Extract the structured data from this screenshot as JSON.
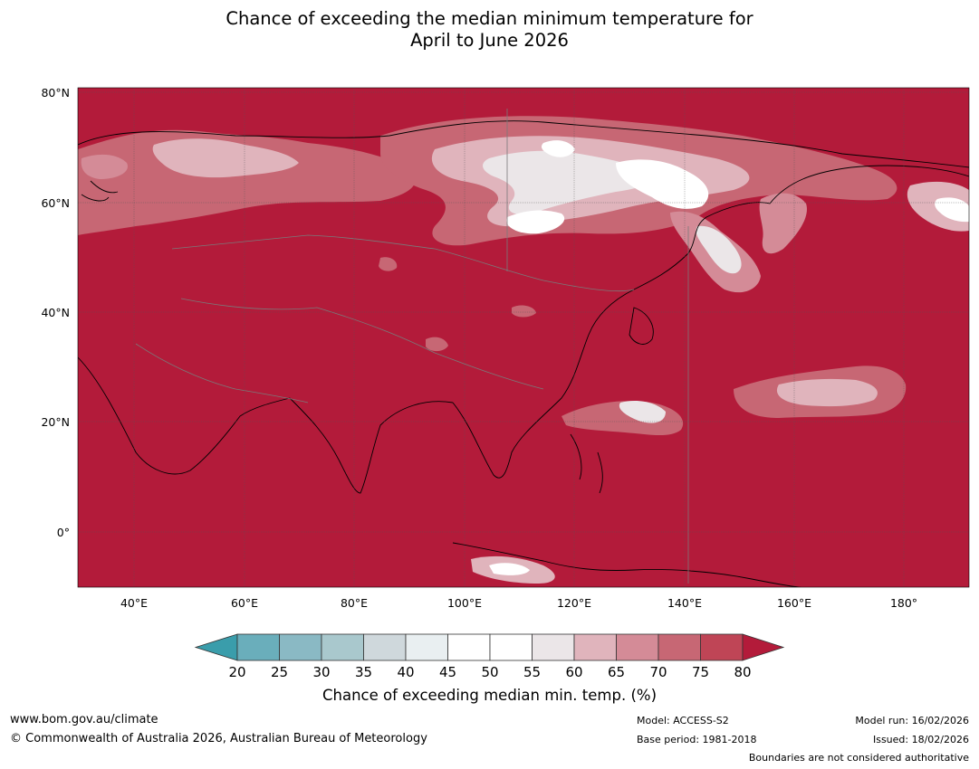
{
  "title": {
    "line1": "Chance of exceeding the median minimum temperature for",
    "line2": "April to June 2026"
  },
  "map": {
    "lat_labels": [
      "80°N",
      "60°N",
      "40°N",
      "20°N",
      "0°"
    ],
    "lon_labels": [
      "40°E",
      "60°E",
      "80°E",
      "100°E",
      "120°E",
      "140°E",
      "160°E",
      "180°"
    ],
    "base_color": "#b31b3a"
  },
  "colorbar": {
    "ticks": [
      "20",
      "25",
      "30",
      "35",
      "40",
      "45",
      "50",
      "55",
      "60",
      "65",
      "70",
      "75",
      "80"
    ],
    "colors": [
      "#3a9dab",
      "#6aaebb",
      "#8ab9c4",
      "#a9c8cd",
      "#cfd8dc",
      "#e9eff1",
      "#ffffff",
      "#ffffff",
      "#ebe6e8",
      "#e0b4bc",
      "#d48b97",
      "#c76774",
      "#bf4556",
      "#b31b3a"
    ],
    "label": "Chance of exceeding median min. temp. (%)"
  },
  "footer": {
    "website": "www.bom.gov.au/climate",
    "copyright": "© Commonwealth of Australia 2026, Australian Bureau of Meteorology",
    "model": "Model: ACCESS-S2",
    "base_period": "Base period: 1981-2018",
    "model_run": "Model run: 16/02/2026",
    "issued": "Issued: 18/02/2026",
    "disclaimer": "Boundaries are not considered authoritative"
  }
}
